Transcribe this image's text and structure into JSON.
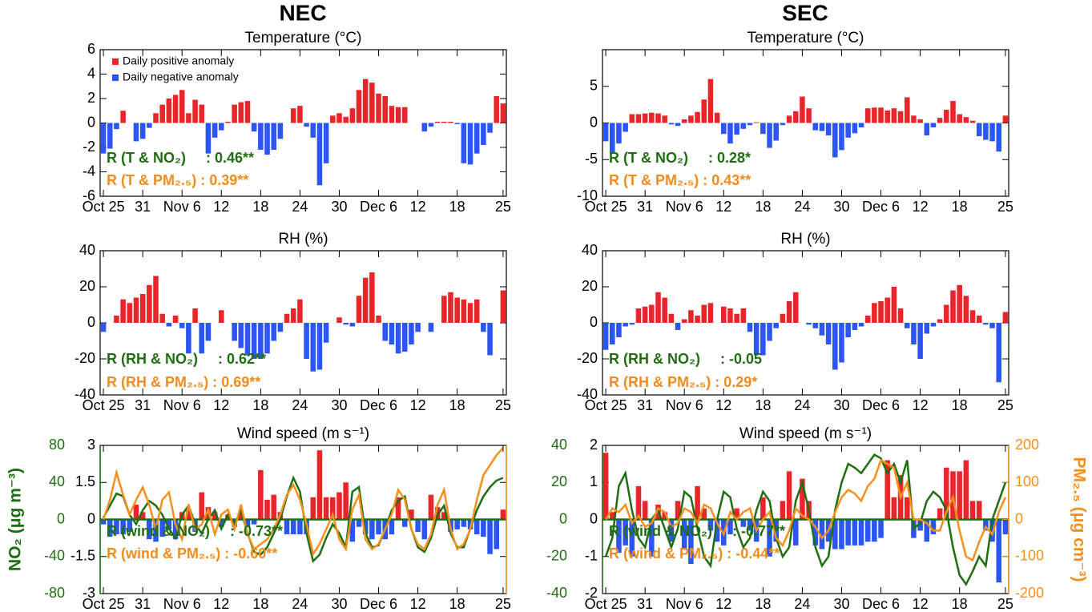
{
  "column_titles": [
    "NEC",
    "SEC"
  ],
  "chart_data": [
    {
      "type": "bar",
      "title": "Temperature (°C)",
      "categories": [
        "Oct 25",
        null,
        null,
        null,
        null,
        null,
        "31",
        null,
        null,
        null,
        null,
        null,
        "Nov 6",
        null,
        null,
        null,
        null,
        null,
        "12",
        null,
        null,
        null,
        null,
        null,
        "18",
        null,
        null,
        null,
        null,
        null,
        "24",
        null,
        null,
        null,
        null,
        null,
        "30",
        null,
        null,
        null,
        null,
        null,
        "Dec 6",
        null,
        null,
        null,
        null,
        null,
        "12",
        null,
        null,
        null,
        null,
        null,
        "18",
        null,
        null,
        null,
        null,
        null,
        null,
        "25"
      ],
      "values": [
        -2.5,
        -2.1,
        -0.5,
        1.0,
        0,
        -1.5,
        -1.3,
        -0.4,
        0.8,
        1.5,
        2.0,
        2.3,
        2.7,
        0.8,
        1.9,
        1.5,
        -2.5,
        -1.2,
        -0.6,
        0.1,
        1.5,
        1.7,
        1.8,
        -0.7,
        -2.2,
        -2.6,
        -2.2,
        -1.3,
        0,
        1.2,
        1.4,
        -0.3,
        -1.2,
        -5.1,
        -3.3,
        0.6,
        0.8,
        0.5,
        1.2,
        2.7,
        3.6,
        3.3,
        2.4,
        2.2,
        1.4,
        1.3,
        1.3,
        0,
        0,
        -0.7,
        -0.3,
        0.1,
        0.1,
        0.1,
        -0.1,
        -3.3,
        -3.4,
        -2.5,
        -1.8,
        -0.8,
        2.2,
        1.6
      ],
      "positive_color": "#e8262a",
      "negative_color": "#2b55f5",
      "legend": [
        {
          "name": "Daily positive anomaly",
          "color": "#e8262a"
        },
        {
          "name": "Daily negative anomaly",
          "color": "#2b55f5"
        }
      ],
      "ylim": [
        -6,
        6
      ],
      "yticks": [
        -6,
        -4,
        -2,
        0,
        2,
        4,
        6
      ],
      "annotations": [
        {
          "text": "R (T & NO₂)     : 0.46**",
          "color": "#1f6e12"
        },
        {
          "text": "R (T & PM₂.₅) : 0.39**",
          "color": "#f08c1e"
        }
      ]
    },
    {
      "type": "bar",
      "title": "RH (%)",
      "categories": [
        "Oct 25",
        null,
        null,
        null,
        null,
        null,
        "31",
        null,
        null,
        null,
        null,
        null,
        "Nov 6",
        null,
        null,
        null,
        null,
        null,
        "12",
        null,
        null,
        null,
        null,
        null,
        "18",
        null,
        null,
        null,
        null,
        null,
        "24",
        null,
        null,
        null,
        null,
        null,
        "30",
        null,
        null,
        null,
        null,
        null,
        "Dec 6",
        null,
        null,
        null,
        null,
        null,
        "12",
        null,
        null,
        null,
        null,
        null,
        "18",
        null,
        null,
        null,
        null,
        null,
        null,
        "25"
      ],
      "values": [
        -5,
        0,
        4,
        13,
        11,
        14,
        16,
        21,
        26,
        5,
        -2,
        4,
        -3,
        -17,
        8,
        -17,
        -10,
        0,
        7,
        0,
        -10,
        -14,
        -18,
        -20,
        -20,
        -17,
        -10,
        -5,
        5,
        8,
        13,
        -20,
        -27,
        -26,
        -11,
        0,
        3,
        -1,
        -2,
        15,
        25,
        28,
        4,
        -10,
        -12,
        -17,
        -16,
        -12,
        -5,
        0,
        -5,
        0,
        15,
        17,
        14,
        13,
        11,
        13,
        -5,
        -18,
        0,
        18
      ],
      "positive_color": "#e8262a",
      "negative_color": "#2b55f5",
      "ylim": [
        -40,
        40
      ],
      "yticks": [
        -40,
        -20,
        0,
        20,
        40
      ],
      "annotations": [
        {
          "text": "R (RH & NO₂)     : 0.62**",
          "color": "#1f6e12"
        },
        {
          "text": "R (RH & PM₂.₅) : 0.69**",
          "color": "#f08c1e"
        }
      ]
    },
    {
      "type": "bar",
      "title": "Wind speed (m s⁻¹)",
      "categories": [
        "Oct 25",
        null,
        null,
        null,
        null,
        null,
        "31",
        null,
        null,
        null,
        null,
        null,
        "Nov 6",
        null,
        null,
        null,
        null,
        null,
        "12",
        null,
        null,
        null,
        null,
        null,
        "18",
        null,
        null,
        null,
        null,
        null,
        "24",
        null,
        null,
        null,
        null,
        null,
        "30",
        null,
        null,
        null,
        null,
        null,
        "Dec 6",
        null,
        null,
        null,
        null,
        null,
        "12",
        null,
        null,
        null,
        null,
        null,
        "18",
        null,
        null,
        null,
        null,
        null,
        null,
        "25"
      ],
      "values": [
        -0.2,
        -0.7,
        -0.6,
        -0.6,
        -0.5,
        0.6,
        0.3,
        -0.8,
        -0.9,
        -0.7,
        -0.4,
        -0.8,
        0.3,
        0.4,
        -0.5,
        1.1,
        0.5,
        0.3,
        -0.3,
        0.2,
        -0.3,
        0.3,
        -0.3,
        -0.2,
        2.0,
        0.8,
        1.0,
        0.3,
        -0.6,
        -0.6,
        -0.6,
        -0.6,
        0.9,
        2.8,
        0.9,
        0.9,
        1.1,
        1.5,
        -0.9,
        -0.3,
        -0.6,
        -0.8,
        -0.6,
        -0.8,
        -0.6,
        0.9,
        -0.3,
        0.4,
        -0.5,
        -0.8,
        1.0,
        0.5,
        0.3,
        -0.5,
        -0.4,
        -0.3,
        -0.4,
        -0.6,
        -0.7,
        -1.4,
        -1.2,
        0.4
      ],
      "positive_color": "#e8262a",
      "negative_color": "#2b55f5",
      "ylim": [
        -3,
        3
      ],
      "yticks": [
        -3,
        -1.5,
        0,
        1.5,
        3
      ],
      "y2lim": [
        -80,
        80
      ],
      "y2ticks": [
        -80,
        -40,
        0,
        40,
        80
      ],
      "y2color": "#1f6e12",
      "y2label": "NO₂  (μg m⁻³)",
      "y3lim": [
        -150,
        150
      ],
      "y3color": "#f5901e",
      "series": [
        {
          "axis": "y2",
          "color": "#1f6e12",
          "values": [
            2,
            15,
            28,
            25,
            5,
            -5,
            10,
            20,
            15,
            5,
            -10,
            -20,
            5,
            15,
            -5,
            -15,
            0,
            10,
            -10,
            5,
            -5,
            10,
            -15,
            -35,
            -38,
            -30,
            -15,
            0,
            25,
            45,
            30,
            -15,
            -45,
            -38,
            -20,
            -5,
            -15,
            -30,
            30,
            35,
            -15,
            -30,
            -28,
            -10,
            10,
            20,
            25,
            -10,
            -30,
            -35,
            -20,
            5,
            15,
            -15,
            -30,
            -30,
            -10,
            10,
            25,
            35,
            42,
            45
          ]
        },
        {
          "axis": "y3",
          "color": "#f5901e",
          "values": [
            0,
            40,
            95,
            50,
            10,
            40,
            65,
            30,
            -20,
            40,
            55,
            -10,
            -40,
            30,
            -20,
            -10,
            20,
            -30,
            10,
            20,
            -20,
            30,
            -30,
            -60,
            -50,
            -40,
            -20,
            10,
            50,
            70,
            40,
            -10,
            -70,
            -50,
            -20,
            10,
            -40,
            -60,
            20,
            50,
            -40,
            -60,
            -50,
            -20,
            10,
            60,
            40,
            -20,
            -50,
            -60,
            -30,
            30,
            60,
            -20,
            -60,
            -50,
            -20,
            40,
            90,
            110,
            130,
            145
          ]
        }
      ],
      "annotations": [
        {
          "text": "R (wind & NO₂)     : -0.73**",
          "color": "#1f6e12"
        },
        {
          "text": "R (wind & PM₂.₅) : -0.60**",
          "color": "#f08c1e"
        }
      ]
    },
    {
      "type": "bar",
      "title": "Temperature (°C)",
      "categories": [
        "Oct 25",
        null,
        null,
        null,
        null,
        null,
        "31",
        null,
        null,
        null,
        null,
        null,
        "Nov 6",
        null,
        null,
        null,
        null,
        null,
        "12",
        null,
        null,
        null,
        null,
        null,
        "18",
        null,
        null,
        null,
        null,
        null,
        "24",
        null,
        null,
        null,
        null,
        null,
        "30",
        null,
        null,
        null,
        null,
        null,
        "Dec 6",
        null,
        null,
        null,
        null,
        null,
        "12",
        null,
        null,
        null,
        null,
        null,
        "18",
        null,
        null,
        null,
        null,
        null,
        null,
        "25"
      ],
      "values": [
        -2.5,
        -4.2,
        -2.8,
        -1.2,
        1.2,
        1.2,
        1.3,
        1.4,
        1.3,
        1.0,
        -0.2,
        -0.4,
        0.5,
        1.0,
        1.5,
        3.2,
        6.0,
        1.4,
        -1.5,
        -2.8,
        -1.6,
        -0.8,
        -0.3,
        0.1,
        -1.5,
        -3.4,
        -2.4,
        -0.3,
        1.0,
        1.6,
        3.6,
        2.0,
        -1.0,
        -1.1,
        -1.7,
        -4.7,
        -3.7,
        -2.0,
        -1.4,
        -0.6,
        2.0,
        2.1,
        2.1,
        1.7,
        2.0,
        1.6,
        3.5,
        1.0,
        0.5,
        -1.7,
        -0.6,
        0.7,
        1.8,
        3.0,
        1.2,
        0.8,
        0.3,
        -1.8,
        -2.3,
        -2.5,
        -3.9,
        1.0
      ],
      "positive_color": "#e8262a",
      "negative_color": "#2b55f5",
      "ylim": [
        -10,
        10
      ],
      "yticks": [
        -10,
        -5,
        0,
        5
      ],
      "annotations": [
        {
          "text": "R (T & NO₂)     : 0.28*",
          "color": "#1f6e12"
        },
        {
          "text": "R (T & PM₂.₅) : 0.43**",
          "color": "#f08c1e"
        }
      ]
    },
    {
      "type": "bar",
      "title": "RH (%)",
      "categories": [
        "Oct 25",
        null,
        null,
        null,
        null,
        null,
        "31",
        null,
        null,
        null,
        null,
        null,
        "Nov 6",
        null,
        null,
        null,
        null,
        null,
        "12",
        null,
        null,
        null,
        null,
        null,
        "18",
        null,
        null,
        null,
        null,
        null,
        "24",
        null,
        null,
        null,
        null,
        null,
        "30",
        null,
        null,
        null,
        null,
        null,
        "Dec 6",
        null,
        null,
        null,
        null,
        null,
        "12",
        null,
        null,
        null,
        null,
        null,
        "18",
        null,
        null,
        null,
        null,
        null,
        null,
        "25"
      ],
      "values": [
        -15,
        -12,
        -8,
        -2,
        -1,
        8,
        9,
        10,
        17,
        14,
        5,
        -4,
        2,
        7,
        4,
        10,
        11,
        0,
        9,
        8,
        5,
        8,
        -5,
        -18,
        -18,
        -10,
        -3,
        5,
        12,
        17,
        0,
        -1,
        -3,
        -7,
        -12,
        -26,
        -22,
        -8,
        -4,
        -2,
        4,
        11,
        12,
        14,
        20,
        8,
        -3,
        -12,
        -20,
        -6,
        -2,
        2,
        10,
        18,
        21,
        15,
        7,
        4,
        -1,
        -3,
        -33,
        6
      ],
      "positive_color": "#e8262a",
      "negative_color": "#2b55f5",
      "ylim": [
        -40,
        40
      ],
      "yticks": [
        -40,
        -20,
        0,
        20,
        40
      ],
      "annotations": [
        {
          "text": "R (RH & NO₂)     : -0.05",
          "color": "#1f6e12"
        },
        {
          "text": "R (RH & PM₂.₅) : 0.29*",
          "color": "#f08c1e"
        }
      ]
    },
    {
      "type": "bar",
      "title": "Wind speed (m s⁻¹)",
      "categories": [
        "Oct 25",
        null,
        null,
        null,
        null,
        null,
        "31",
        null,
        null,
        null,
        null,
        null,
        "Nov 6",
        null,
        null,
        null,
        null,
        null,
        "12",
        null,
        null,
        null,
        null,
        null,
        "18",
        null,
        null,
        null,
        null,
        null,
        "24",
        null,
        null,
        null,
        null,
        null,
        "30",
        null,
        null,
        null,
        null,
        null,
        "Dec 6",
        null,
        null,
        null,
        null,
        null,
        "12",
        null,
        null,
        null,
        null,
        null,
        "18",
        null,
        null,
        null,
        null,
        null,
        null,
        "25"
      ],
      "values": [
        1.8,
        0.2,
        -0.9,
        -0.7,
        -1.0,
        0.9,
        0.5,
        -1.0,
        0.4,
        0.2,
        -0.6,
        0.5,
        -0.8,
        -1.2,
        0.9,
        0.3,
        -0.3,
        -0.6,
        -0.7,
        -0.4,
        0.3,
        -0.2,
        -0.3,
        -0.6,
        0.6,
        -1.0,
        -0.6,
        0.5,
        1.3,
        -0.7,
        1.1,
        0.5,
        -0.7,
        -0.8,
        -0.6,
        -0.8,
        -0.8,
        -0.7,
        -0.7,
        -0.7,
        -0.6,
        -0.6,
        -0.5,
        1.6,
        0.6,
        1.2,
        0.6,
        -0.5,
        -0.3,
        -0.6,
        -0.4,
        0.3,
        1.4,
        1.3,
        1.3,
        1.6,
        0.5,
        0.5,
        -0.3,
        -0.6,
        -1.7,
        -0.4
      ],
      "positive_color": "#e8262a",
      "negative_color": "#2b55f5",
      "ylim": [
        -2,
        2
      ],
      "yticks": [
        -2,
        -1,
        0,
        1,
        2
      ],
      "y2lim": [
        -40,
        40
      ],
      "y2ticks": [
        -40,
        -20,
        0,
        20,
        40
      ],
      "y2color": "#1f6e12",
      "y3lim": [
        -200,
        200
      ],
      "y3ticks": [
        -200,
        -100,
        0,
        100,
        200
      ],
      "y3color": "#f5901e",
      "y3label": "PM₂.₅ (μg cm⁻³)",
      "series": [
        {
          "axis": "y2",
          "color": "#1f6e12",
          "values": [
            -20,
            -10,
            18,
            25,
            5,
            -10,
            -15,
            0,
            5,
            -5,
            -15,
            -5,
            15,
            12,
            -5,
            -20,
            -25,
            0,
            15,
            12,
            -5,
            -15,
            -10,
            5,
            15,
            10,
            -10,
            -20,
            -15,
            10,
            20,
            5,
            -15,
            -25,
            -20,
            5,
            20,
            30,
            28,
            25,
            30,
            35,
            33,
            25,
            30,
            20,
            32,
            -5,
            -2,
            10,
            15,
            12,
            5,
            -15,
            -30,
            -35,
            -28,
            -20,
            -25,
            0,
            10,
            20
          ]
        },
        {
          "axis": "y3",
          "color": "#f5901e",
          "values": [
            0,
            30,
            20,
            40,
            -10,
            10,
            -20,
            -10,
            30,
            20,
            -20,
            -10,
            30,
            20,
            -10,
            40,
            30,
            -10,
            -40,
            20,
            0,
            20,
            30,
            -30,
            0,
            20,
            -50,
            -70,
            -30,
            30,
            10,
            0,
            -20,
            -50,
            -30,
            20,
            60,
            80,
            70,
            50,
            90,
            110,
            160,
            150,
            140,
            60,
            100,
            0,
            0,
            -10,
            -30,
            -30,
            20,
            60,
            -30,
            -100,
            -110,
            -60,
            -20,
            -40,
            20,
            60
          ]
        }
      ],
      "annotations": [
        {
          "text": "R (wind & NO₂)     : -0.77**",
          "color": "#1f6e12"
        },
        {
          "text": "R (wind & PM₂.₅) : -0.44**",
          "color": "#f08c1e"
        }
      ]
    }
  ]
}
